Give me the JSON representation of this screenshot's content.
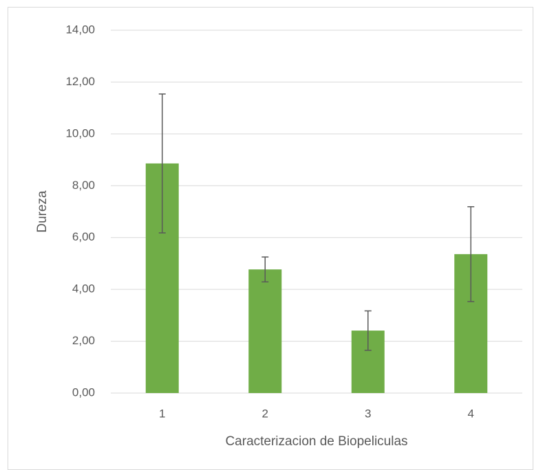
{
  "chart_data": {
    "type": "bar",
    "x_label": "Caracterizacion de Biopeliculas",
    "y_label": "Dureza",
    "categories": [
      "1",
      "2",
      "3",
      "4"
    ],
    "values": [
      8.86,
      4.77,
      2.41,
      5.36
    ],
    "errors": [
      2.68,
      0.48,
      0.76,
      1.83
    ],
    "color": "#70ad47",
    "error_color": "#595959",
    "ylim": [
      0,
      14
    ],
    "yticks": [
      {
        "value": 0,
        "label": "0,00"
      },
      {
        "value": 2,
        "label": "2,00"
      },
      {
        "value": 4,
        "label": "4,00"
      },
      {
        "value": 6,
        "label": "6,00"
      },
      {
        "value": 8,
        "label": "8,00"
      },
      {
        "value": 10,
        "label": "10,00"
      },
      {
        "value": 12,
        "label": "12,00"
      },
      {
        "value": 14,
        "label": "14,00"
      }
    ],
    "grid": true
  }
}
